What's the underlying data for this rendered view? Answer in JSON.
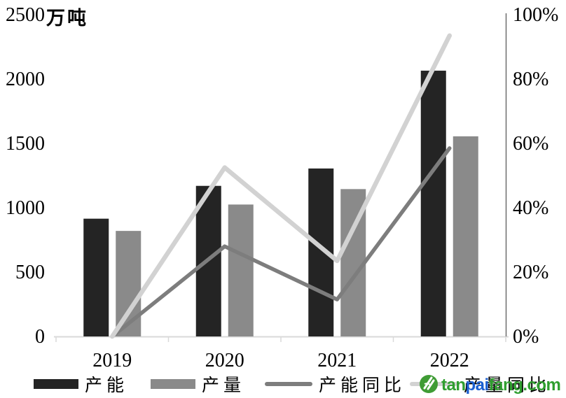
{
  "chart_data": {
    "type": "bar",
    "subtype": "bar+line combo, dual axis",
    "title": "",
    "unit_label": "万吨",
    "categories": [
      "2019",
      "2020",
      "2021",
      "2022"
    ],
    "series": [
      {
        "name": "产能",
        "type": "bar",
        "axis": "left",
        "color": "#242424",
        "values": [
          915,
          1170,
          1305,
          2065
        ]
      },
      {
        "name": "产量",
        "type": "bar",
        "axis": "left",
        "color": "#8a8a8a",
        "values": [
          820,
          1025,
          1145,
          1555
        ]
      },
      {
        "name": "产能同比",
        "type": "line",
        "axis": "right",
        "color": "#7d7d7d",
        "values": [
          0,
          28,
          11.5,
          58.5
        ]
      },
      {
        "name": "产量同比",
        "type": "line",
        "axis": "right",
        "color": "#d2d2d2",
        "values": [
          0,
          52.5,
          23.5,
          93.5
        ]
      }
    ],
    "left_axis": {
      "min": 0,
      "max": 2500,
      "tick_step": 500,
      "tick_labels": [
        "0",
        "500",
        "1000",
        "1500",
        "2000",
        "2500"
      ]
    },
    "right_axis": {
      "min": 0,
      "max": 100,
      "tick_step": 20,
      "tick_labels": [
        "0%",
        "20%",
        "40%",
        "60%",
        "80%",
        "100%"
      ]
    },
    "legend_position": "bottom",
    "grid": "none",
    "axis_colors": {
      "baseline": "#d9d9d9",
      "right_axis_line": "#6e6e6e"
    }
  },
  "watermark": {
    "logo": "tanpaifang-green-circle-logo",
    "segments": [
      {
        "text": "tan",
        "color": "#2f9e2f"
      },
      {
        "text": "pai",
        "color": "#1a5fd0"
      },
      {
        "text": "fang",
        "color": "#2f9e2f"
      },
      {
        "text": ".com",
        "color": "#2f9e2f"
      }
    ]
  }
}
